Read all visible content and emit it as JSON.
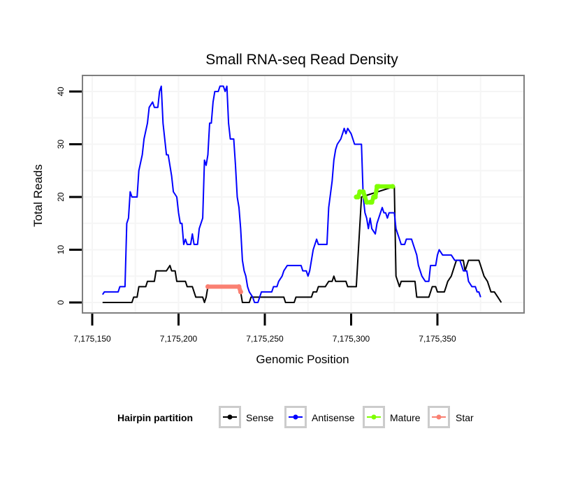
{
  "chart_data": {
    "type": "line",
    "title": "Small RNA-seq Read Density",
    "xlabel": "Genomic Position",
    "ylabel": "Total Reads",
    "xlim": [
      7175140,
      7175395
    ],
    "ylim": [
      -2,
      42
    ],
    "grid": true,
    "x_ticks": [
      7175150,
      7175200,
      7175250,
      7175300,
      7175350
    ],
    "x_tick_labels": [
      "7,175,150",
      "7,175,200",
      "7,175,250",
      "7,175,300",
      "7,175,350"
    ],
    "y_ticks": [
      0,
      10,
      20,
      30,
      40
    ],
    "y_tick_labels": [
      "0",
      "10",
      "20",
      "30",
      "40"
    ],
    "legend": {
      "title": "Hairpin partition",
      "placement": "bottom",
      "entries": [
        {
          "label": "Sense",
          "color": "#000000"
        },
        {
          "label": "Antisense",
          "color": "#0000ff"
        },
        {
          "label": "Mature",
          "color": "#7fff00"
        },
        {
          "label": "Star",
          "color": "#fa8072"
        }
      ]
    },
    "series": [
      {
        "name": "Sense",
        "color": "#000000",
        "points": [
          [
            7175156,
            0
          ],
          [
            7175173,
            0
          ],
          [
            7175174,
            1
          ],
          [
            7175176,
            1
          ],
          [
            7175177,
            3
          ],
          [
            7175181,
            3
          ],
          [
            7175182,
            4
          ],
          [
            7175186,
            4
          ],
          [
            7175187,
            6
          ],
          [
            7175193,
            6
          ],
          [
            7175195,
            7
          ],
          [
            7175196,
            6
          ],
          [
            7175198,
            6
          ],
          [
            7175199,
            4
          ],
          [
            7175204,
            4
          ],
          [
            7175205,
            3
          ],
          [
            7175208,
            3
          ],
          [
            7175210,
            1
          ],
          [
            7175214,
            1
          ],
          [
            7175215,
            0
          ],
          [
            7175216,
            1
          ],
          [
            7175217,
            3
          ],
          [
            7175235,
            3
          ],
          [
            7175236,
            2
          ],
          [
            7175237,
            0
          ],
          [
            7175241,
            0
          ],
          [
            7175242,
            1
          ],
          [
            7175261,
            1
          ],
          [
            7175262,
            0
          ],
          [
            7175267,
            0
          ],
          [
            7175268,
            1
          ],
          [
            7175277,
            1
          ],
          [
            7175278,
            2
          ],
          [
            7175280,
            2
          ],
          [
            7175281,
            3
          ],
          [
            7175285,
            3
          ],
          [
            7175287,
            4
          ],
          [
            7175289,
            4
          ],
          [
            7175290,
            5
          ],
          [
            7175291,
            4
          ],
          [
            7175297,
            4
          ],
          [
            7175298,
            3
          ],
          [
            7175303,
            3
          ],
          [
            7175306,
            20
          ],
          [
            7175325,
            22
          ],
          [
            7175326,
            5
          ],
          [
            7175328,
            3
          ],
          [
            7175329,
            4
          ],
          [
            7175337,
            4
          ],
          [
            7175338,
            1
          ],
          [
            7175345,
            1
          ],
          [
            7175347,
            3
          ],
          [
            7175349,
            3
          ],
          [
            7175350,
            2
          ],
          [
            7175354,
            2
          ],
          [
            7175355,
            3
          ],
          [
            7175356,
            4
          ],
          [
            7175358,
            5
          ],
          [
            7175360,
            7
          ],
          [
            7175361,
            8
          ],
          [
            7175365,
            8
          ],
          [
            7175366,
            6
          ],
          [
            7175368,
            8
          ],
          [
            7175374,
            8
          ],
          [
            7175375,
            7
          ],
          [
            7175377,
            5
          ],
          [
            7175379,
            4
          ],
          [
            7175381,
            2
          ],
          [
            7175383,
            2
          ],
          [
            7175385,
            1
          ],
          [
            7175387,
            0
          ]
        ]
      },
      {
        "name": "Antisense",
        "color": "#0000ff",
        "points": [
          [
            7175156,
            1.5
          ],
          [
            7175157,
            2
          ],
          [
            7175165,
            2
          ],
          [
            7175166,
            3
          ],
          [
            7175169,
            3
          ],
          [
            7175170,
            15
          ],
          [
            7175171,
            16
          ],
          [
            7175172,
            21
          ],
          [
            7175173,
            20
          ],
          [
            7175176,
            20
          ],
          [
            7175177,
            25
          ],
          [
            7175179,
            28
          ],
          [
            7175180,
            31
          ],
          [
            7175182,
            34
          ],
          [
            7175183,
            37
          ],
          [
            7175185,
            38
          ],
          [
            7175186,
            37
          ],
          [
            7175188,
            37
          ],
          [
            7175189,
            40
          ],
          [
            7175190,
            41
          ],
          [
            7175191,
            34
          ],
          [
            7175193,
            28
          ],
          [
            7175194,
            28
          ],
          [
            7175196,
            24
          ],
          [
            7175197,
            21
          ],
          [
            7175199,
            20
          ],
          [
            7175200,
            17
          ],
          [
            7175201,
            15
          ],
          [
            7175202,
            15
          ],
          [
            7175203,
            11
          ],
          [
            7175204,
            12
          ],
          [
            7175205,
            11
          ],
          [
            7175207,
            11
          ],
          [
            7175208,
            13
          ],
          [
            7175209,
            11
          ],
          [
            7175211,
            11
          ],
          [
            7175212,
            14
          ],
          [
            7175214,
            16
          ],
          [
            7175215,
            27
          ],
          [
            7175216,
            26
          ],
          [
            7175217,
            28
          ],
          [
            7175218,
            34
          ],
          [
            7175219,
            34
          ],
          [
            7175220,
            38
          ],
          [
            7175221,
            40
          ],
          [
            7175223,
            40
          ],
          [
            7175224,
            41
          ],
          [
            7175226,
            41
          ],
          [
            7175227,
            40
          ],
          [
            7175228,
            41
          ],
          [
            7175229,
            34
          ],
          [
            7175230,
            31
          ],
          [
            7175232,
            31
          ],
          [
            7175233,
            26
          ],
          [
            7175234,
            20
          ],
          [
            7175235,
            18
          ],
          [
            7175236,
            14
          ],
          [
            7175237,
            8
          ],
          [
            7175238,
            6
          ],
          [
            7175239,
            5
          ],
          [
            7175240,
            3
          ],
          [
            7175241,
            2
          ],
          [
            7175243,
            1
          ],
          [
            7175244,
            0
          ],
          [
            7175246,
            0
          ],
          [
            7175247,
            1
          ],
          [
            7175248,
            2
          ],
          [
            7175254,
            2
          ],
          [
            7175255,
            3
          ],
          [
            7175257,
            3
          ],
          [
            7175258,
            4
          ],
          [
            7175260,
            5
          ],
          [
            7175261,
            6
          ],
          [
            7175263,
            7
          ],
          [
            7175271,
            7
          ],
          [
            7175272,
            6
          ],
          [
            7175274,
            6
          ],
          [
            7175275,
            5
          ],
          [
            7175276,
            6
          ],
          [
            7175277,
            8
          ],
          [
            7175278,
            10
          ],
          [
            7175280,
            12
          ],
          [
            7175281,
            11
          ],
          [
            7175286,
            11
          ],
          [
            7175287,
            18
          ],
          [
            7175289,
            23
          ],
          [
            7175290,
            27
          ],
          [
            7175291,
            29
          ],
          [
            7175292,
            30
          ],
          [
            7175294,
            31
          ],
          [
            7175295,
            32
          ],
          [
            7175296,
            33
          ],
          [
            7175297,
            32
          ],
          [
            7175298,
            33
          ],
          [
            7175300,
            32
          ],
          [
            7175301,
            31
          ],
          [
            7175302,
            30
          ],
          [
            7175306,
            30
          ],
          [
            7175307,
            20
          ],
          [
            7175308,
            17
          ],
          [
            7175309,
            16
          ],
          [
            7175310,
            14
          ],
          [
            7175311,
            16
          ],
          [
            7175312,
            14
          ],
          [
            7175314,
            13
          ],
          [
            7175315,
            15
          ],
          [
            7175317,
            17
          ],
          [
            7175318,
            18
          ],
          [
            7175319,
            17
          ],
          [
            7175320,
            17
          ],
          [
            7175321,
            16
          ],
          [
            7175322,
            17
          ],
          [
            7175325,
            17
          ],
          [
            7175326,
            14
          ],
          [
            7175327,
            13
          ],
          [
            7175328,
            12
          ],
          [
            7175329,
            11
          ],
          [
            7175331,
            11
          ],
          [
            7175332,
            12
          ],
          [
            7175335,
            12
          ],
          [
            7175336,
            11
          ],
          [
            7175338,
            9
          ],
          [
            7175339,
            7
          ],
          [
            7175341,
            5
          ],
          [
            7175343,
            4
          ],
          [
            7175345,
            4
          ],
          [
            7175346,
            7
          ],
          [
            7175349,
            7
          ],
          [
            7175350,
            9
          ],
          [
            7175351,
            10
          ],
          [
            7175353,
            9
          ],
          [
            7175358,
            9
          ],
          [
            7175360,
            8
          ],
          [
            7175363,
            8
          ],
          [
            7175365,
            6
          ],
          [
            7175367,
            6
          ],
          [
            7175368,
            4
          ],
          [
            7175370,
            3
          ],
          [
            7175372,
            3
          ],
          [
            7175373,
            2
          ],
          [
            7175374,
            2
          ],
          [
            7175375,
            1
          ]
        ]
      },
      {
        "name": "Mature",
        "color": "#7fff00",
        "points": [
          [
            7175303,
            20
          ],
          [
            7175304,
            20
          ],
          [
            7175305,
            21
          ],
          [
            7175307,
            21
          ],
          [
            7175308,
            20
          ],
          [
            7175309,
            19
          ],
          [
            7175311,
            19
          ],
          [
            7175312,
            19
          ],
          [
            7175313,
            20
          ],
          [
            7175314,
            20
          ],
          [
            7175315,
            22
          ],
          [
            7175316,
            22
          ],
          [
            7175324,
            22
          ]
        ]
      },
      {
        "name": "Star",
        "color": "#fa8072",
        "points": [
          [
            7175217,
            3
          ],
          [
            7175235,
            3
          ],
          [
            7175236,
            2
          ]
        ]
      }
    ]
  }
}
